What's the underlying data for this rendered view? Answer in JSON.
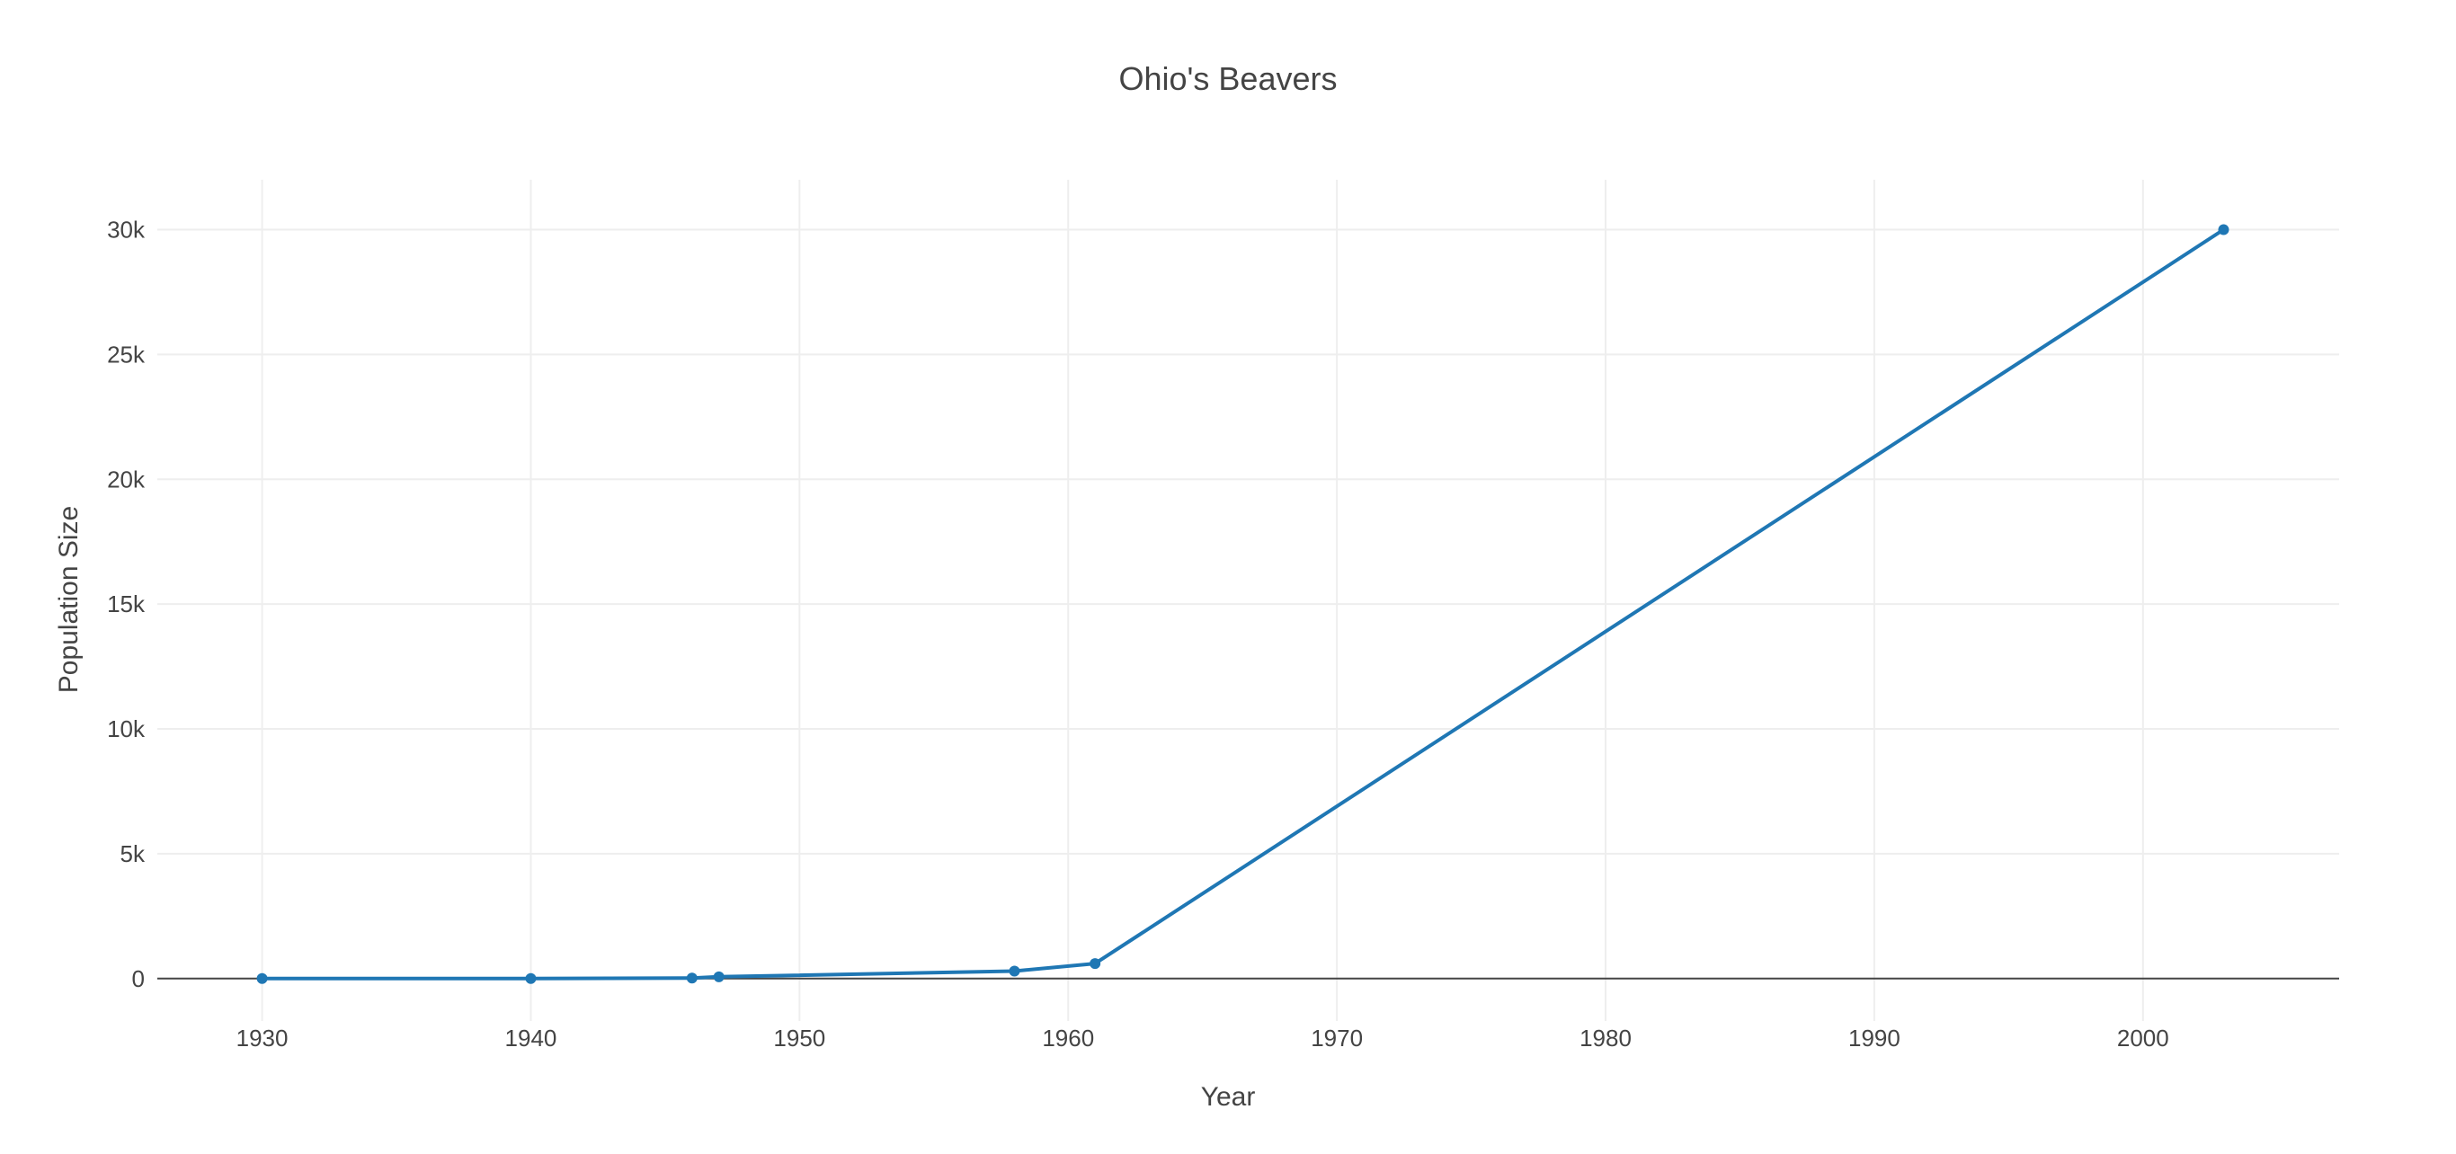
{
  "chart_data": {
    "type": "line",
    "title": "Ohio's Beavers",
    "xlabel": "Year",
    "ylabel": "Population Size",
    "xlim": [
      1926.1,
      2007.3
    ],
    "ylim": [
      -1700,
      32000
    ],
    "x_ticks": [
      1930,
      1940,
      1950,
      1960,
      1970,
      1980,
      1990,
      2000
    ],
    "y_ticks": [
      {
        "value": 0,
        "label": "0"
      },
      {
        "value": 5000,
        "label": "5k"
      },
      {
        "value": 10000,
        "label": "10k"
      },
      {
        "value": 15000,
        "label": "15k"
      },
      {
        "value": 20000,
        "label": "20k"
      },
      {
        "value": 25000,
        "label": "25k"
      },
      {
        "value": 30000,
        "label": "30k"
      }
    ],
    "grid": true,
    "legend": "none",
    "series": [
      {
        "color": "#1f77b4",
        "mode": "lines+markers",
        "x": [
          1930,
          1940,
          1946,
          1947,
          1958,
          1961,
          2003
        ],
        "y": [
          0,
          0,
          20,
          70,
          300,
          600,
          30000
        ]
      }
    ]
  }
}
